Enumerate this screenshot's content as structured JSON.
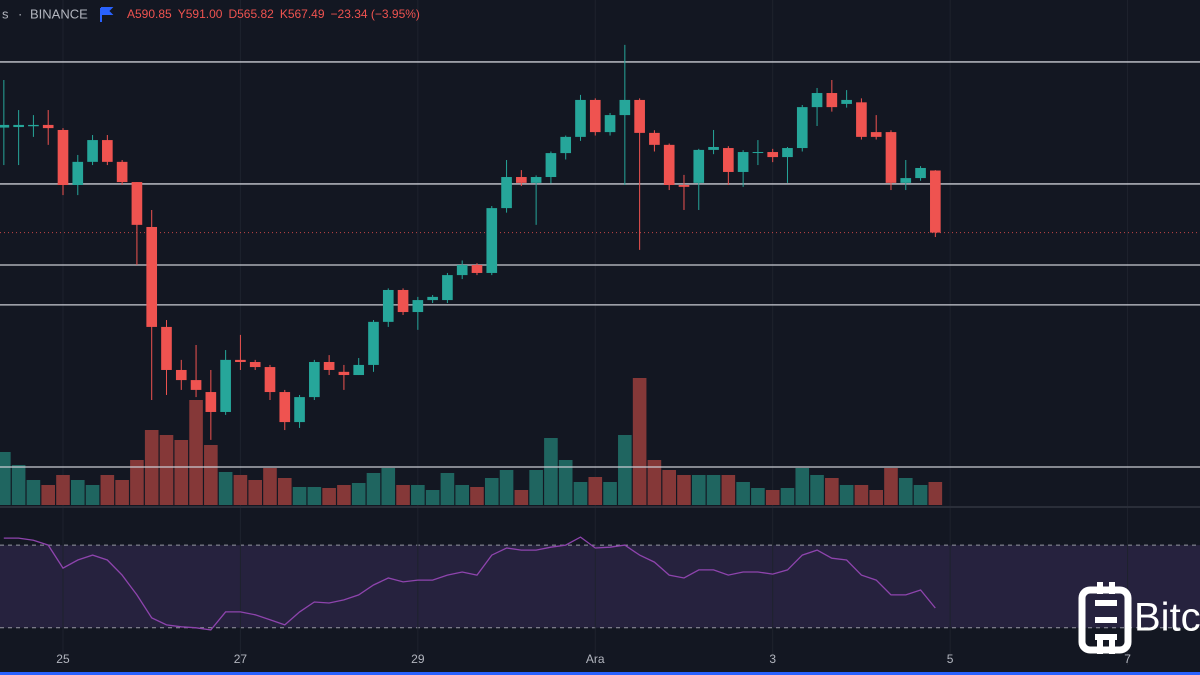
{
  "header": {
    "exchange": "BINANCE",
    "items": [
      "A590.85",
      "Y591.00",
      "D565.82",
      "K567.49",
      "−23.34 (−3.95%)"
    ]
  },
  "watermark": "Bitc",
  "chart_data": {
    "type": "candlestick",
    "x": [
      0,
      1,
      2,
      3,
      4,
      5,
      6,
      7,
      8,
      9,
      10,
      11,
      12,
      13,
      14,
      15,
      16,
      17,
      18,
      19,
      20,
      21,
      22,
      23,
      24,
      25,
      26,
      27,
      28,
      29,
      30,
      31,
      32,
      33,
      34,
      35,
      36,
      37,
      38,
      39,
      40,
      41,
      42,
      43,
      44,
      45,
      46,
      47,
      48,
      49,
      50,
      51,
      52,
      53,
      54,
      55,
      56,
      57,
      58,
      59,
      60,
      61,
      62,
      63
    ],
    "ohlc": [
      [
        607.0,
        624.9,
        592.9,
        608.0
      ],
      [
        607.2,
        613.6,
        592.9,
        608.0
      ],
      [
        607.5,
        611.7,
        603.5,
        608.0
      ],
      [
        608.0,
        613.6,
        600.5,
        606.8
      ],
      [
        606.1,
        606.8,
        581.6,
        585.4
      ],
      [
        585.4,
        596.7,
        581.6,
        594.1
      ],
      [
        594.1,
        604.2,
        592.9,
        602.3
      ],
      [
        602.3,
        604.2,
        592.9,
        594.1
      ],
      [
        594.1,
        594.8,
        585.4,
        586.5
      ],
      [
        586.5,
        586.5,
        555.3,
        570.4
      ],
      [
        569.6,
        576.0,
        504.5,
        532.0
      ],
      [
        532.0,
        534.6,
        506.4,
        515.8
      ],
      [
        515.8,
        519.6,
        508.3,
        512.0
      ],
      [
        512.0,
        525.2,
        505.6,
        508.3
      ],
      [
        507.5,
        515.8,
        489.5,
        500.0
      ],
      [
        500.0,
        523.3,
        498.9,
        519.6
      ],
      [
        519.6,
        529.0,
        515.8,
        518.8
      ],
      [
        518.8,
        519.6,
        515.8,
        516.9
      ],
      [
        516.9,
        517.7,
        504.5,
        507.5
      ],
      [
        507.5,
        508.3,
        493.2,
        496.2
      ],
      [
        496.2,
        506.4,
        494.0,
        505.6
      ],
      [
        505.6,
        519.6,
        504.5,
        518.8
      ],
      [
        518.8,
        521.4,
        513.9,
        515.8
      ],
      [
        515.1,
        517.7,
        508.3,
        513.9
      ],
      [
        513.9,
        520.3,
        513.9,
        517.7
      ],
      [
        517.7,
        534.6,
        515.1,
        533.9
      ],
      [
        533.9,
        546.5,
        532.0,
        545.9
      ],
      [
        545.9,
        546.5,
        536.5,
        537.6
      ],
      [
        537.6,
        543.3,
        530.9,
        542.1
      ],
      [
        542.1,
        544.0,
        541.0,
        543.3
      ],
      [
        542.1,
        552.3,
        541.0,
        551.5
      ],
      [
        551.5,
        557.0,
        550.0,
        555.3
      ],
      [
        555.3,
        556.0,
        551.5,
        552.3
      ],
      [
        552.3,
        577.5,
        551.5,
        576.7
      ],
      [
        576.7,
        594.8,
        575.0,
        588.4
      ],
      [
        588.4,
        591.0,
        585.0,
        586.2
      ],
      [
        586.2,
        589.0,
        570.4,
        588.4
      ],
      [
        588.4,
        598.0,
        586.0,
        597.4
      ],
      [
        597.4,
        604.0,
        595.0,
        603.5
      ],
      [
        603.5,
        619.3,
        602.0,
        617.4
      ],
      [
        617.4,
        618.0,
        604.0,
        605.3
      ],
      [
        605.3,
        612.5,
        604.0,
        611.7
      ],
      [
        611.7,
        638.1,
        585.4,
        617.4
      ],
      [
        617.4,
        618.0,
        561.0,
        605.0
      ],
      [
        605.0,
        606.0,
        598.0,
        600.5
      ],
      [
        600.5,
        601.0,
        583.5,
        585.4
      ],
      [
        585.4,
        589.2,
        576.0,
        584.7
      ],
      [
        586.2,
        599.0,
        576.0,
        598.6
      ],
      [
        598.6,
        606.1,
        597.0,
        599.7
      ],
      [
        599.3,
        600.0,
        585.4,
        590.3
      ],
      [
        590.3,
        598.5,
        584.7,
        597.8
      ],
      [
        597.6,
        602.3,
        592.9,
        597.8
      ],
      [
        597.8,
        599.0,
        594.0,
        595.9
      ],
      [
        595.9,
        599.7,
        586.2,
        599.3
      ],
      [
        599.3,
        615.5,
        598.0,
        614.7
      ],
      [
        614.7,
        621.9,
        607.6,
        620.0
      ],
      [
        620.0,
        624.9,
        613.0,
        614.7
      ],
      [
        615.9,
        621.1,
        614.5,
        617.4
      ],
      [
        616.5,
        618.0,
        602.5,
        603.5
      ],
      [
        605.3,
        611.7,
        602.5,
        603.5
      ],
      [
        605.3,
        606.0,
        583.5,
        586.2
      ],
      [
        586.2,
        594.8,
        583.5,
        588.0
      ],
      [
        588.0,
        592.5,
        587.0,
        591.8
      ],
      [
        590.85,
        591.0,
        565.82,
        567.49
      ]
    ],
    "volume": [
      53,
      40,
      25,
      20,
      30,
      25,
      20,
      30,
      25,
      45,
      75,
      70,
      65,
      105,
      60,
      33,
      30,
      25,
      37,
      27,
      18,
      18,
      17,
      20,
      22,
      32,
      37,
      20,
      20,
      15,
      32,
      20,
      18,
      27,
      35,
      15,
      35,
      67,
      45,
      23,
      28,
      23,
      70,
      127,
      45,
      35,
      30,
      30,
      30,
      30,
      23,
      17,
      15,
      17,
      37,
      30,
      27,
      20,
      20,
      15,
      37,
      27,
      20,
      23
    ],
    "rsi": [
      73.4,
      73.4,
      72.4,
      70.0,
      58.9,
      62.8,
      65.2,
      62.8,
      55.5,
      45.9,
      34.8,
      31.4,
      30.5,
      30.0,
      29.0,
      37.7,
      37.7,
      36.3,
      33.9,
      31.4,
      37.7,
      42.5,
      42.0,
      43.5,
      45.9,
      50.7,
      54.1,
      52.2,
      53.1,
      53.1,
      55.5,
      57.0,
      55.5,
      65.2,
      68.6,
      67.6,
      67.6,
      69.0,
      70.0,
      73.9,
      68.6,
      69.0,
      70.0,
      65.2,
      61.8,
      55.5,
      54.1,
      58.0,
      58.0,
      55.5,
      57.0,
      57.0,
      56.0,
      58.0,
      65.2,
      67.6,
      63.7,
      62.8,
      55.5,
      53.1,
      45.9,
      45.9,
      48.3,
      39.6
    ],
    "rsi_bands": [
      30,
      70
    ],
    "levels": [
      631.7,
      585.8,
      555.3,
      540.3,
      479.3
    ],
    "xlim": [
      -0.26,
      80.9
    ],
    "ylim": [
      465,
      655
    ],
    "vlim": [
      0,
      150
    ],
    "rsilim": [
      12,
      87
    ],
    "xticks": [
      {
        "value": 4,
        "label": "25"
      },
      {
        "value": 16,
        "label": "27"
      },
      {
        "value": 28,
        "label": "29"
      },
      {
        "value": 40,
        "label": "Ara"
      },
      {
        "value": 52,
        "label": "3"
      },
      {
        "value": 64,
        "label": "5"
      },
      {
        "value": 76,
        "label": "7"
      }
    ],
    "up_color": "#26a69a",
    "down_color": "#ef5350",
    "up_volume_color": "#1f6560",
    "down_volume_color": "#853838",
    "rsi_color": "#8e44ad",
    "level_color": "#c9ccd3"
  }
}
